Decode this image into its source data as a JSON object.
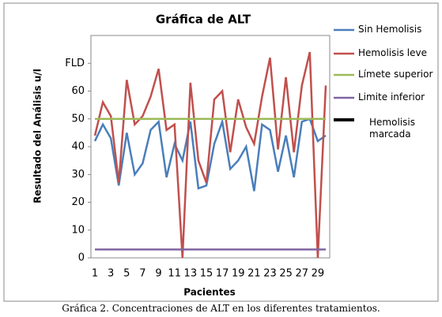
{
  "chart_data": {
    "type": "line",
    "title": "Gráfica de ALT",
    "ylabel": "Resultado del Análisis u/l",
    "xlabel": "Pacientes",
    "caption": "Gráfica 2. Concentraciones de ALT en los diferentes tratamientos.",
    "categories": [
      "1",
      null,
      "3",
      null,
      "5",
      null,
      "7",
      null,
      "9",
      null,
      "11",
      null,
      "13",
      null,
      "15",
      null,
      "17",
      null,
      "19",
      null,
      "21",
      null,
      "23",
      null,
      "25",
      null,
      "27",
      null,
      "29",
      null
    ],
    "ylim": [
      0,
      80
    ],
    "yticks": [
      0,
      10,
      20,
      30,
      40,
      50,
      60,
      {
        "value": 70,
        "label": "FLD"
      }
    ],
    "series": [
      {
        "name": "Sin Hemolisis",
        "color": "#4a7ebb",
        "values": [
          42,
          48,
          43,
          26,
          45,
          30,
          34,
          46,
          49,
          29,
          41,
          35,
          49,
          25,
          26,
          41,
          49,
          32,
          35,
          40,
          24,
          48,
          46,
          31,
          44,
          29,
          49,
          50,
          42,
          44
        ]
      },
      {
        "name": "Hemolisis leve",
        "color": "#c0504d",
        "values": [
          44,
          56,
          51,
          27,
          64,
          48,
          51,
          58,
          68,
          46,
          48,
          0,
          63,
          35,
          27,
          57,
          60,
          38,
          57,
          47,
          41,
          58,
          72,
          39,
          65,
          38,
          62,
          74,
          0,
          62
        ]
      },
      {
        "name": "Límete superior",
        "color": "#9bbb59",
        "values": [
          50,
          50,
          50,
          50,
          50,
          50,
          50,
          50,
          50,
          50,
          50,
          50,
          50,
          50,
          50,
          50,
          50,
          50,
          50,
          50,
          50,
          50,
          50,
          50,
          50,
          50,
          50,
          50,
          50,
          50
        ]
      },
      {
        "name": "Limite inferior",
        "color": "#8064a2",
        "values": [
          3,
          3,
          3,
          3,
          3,
          3,
          3,
          3,
          3,
          3,
          3,
          3,
          3,
          3,
          3,
          3,
          3,
          3,
          3,
          3,
          3,
          3,
          3,
          3,
          3,
          3,
          3,
          3,
          3,
          3
        ]
      },
      {
        "name": "Hemolisis marcada",
        "color": "#000000",
        "values": [
          null,
          null,
          null,
          null,
          null,
          null,
          null,
          null,
          null,
          null,
          null,
          null,
          null,
          null,
          null,
          null,
          null,
          null,
          null,
          null,
          null,
          null,
          null,
          null,
          null,
          null,
          null,
          null,
          null,
          null
        ]
      }
    ]
  }
}
